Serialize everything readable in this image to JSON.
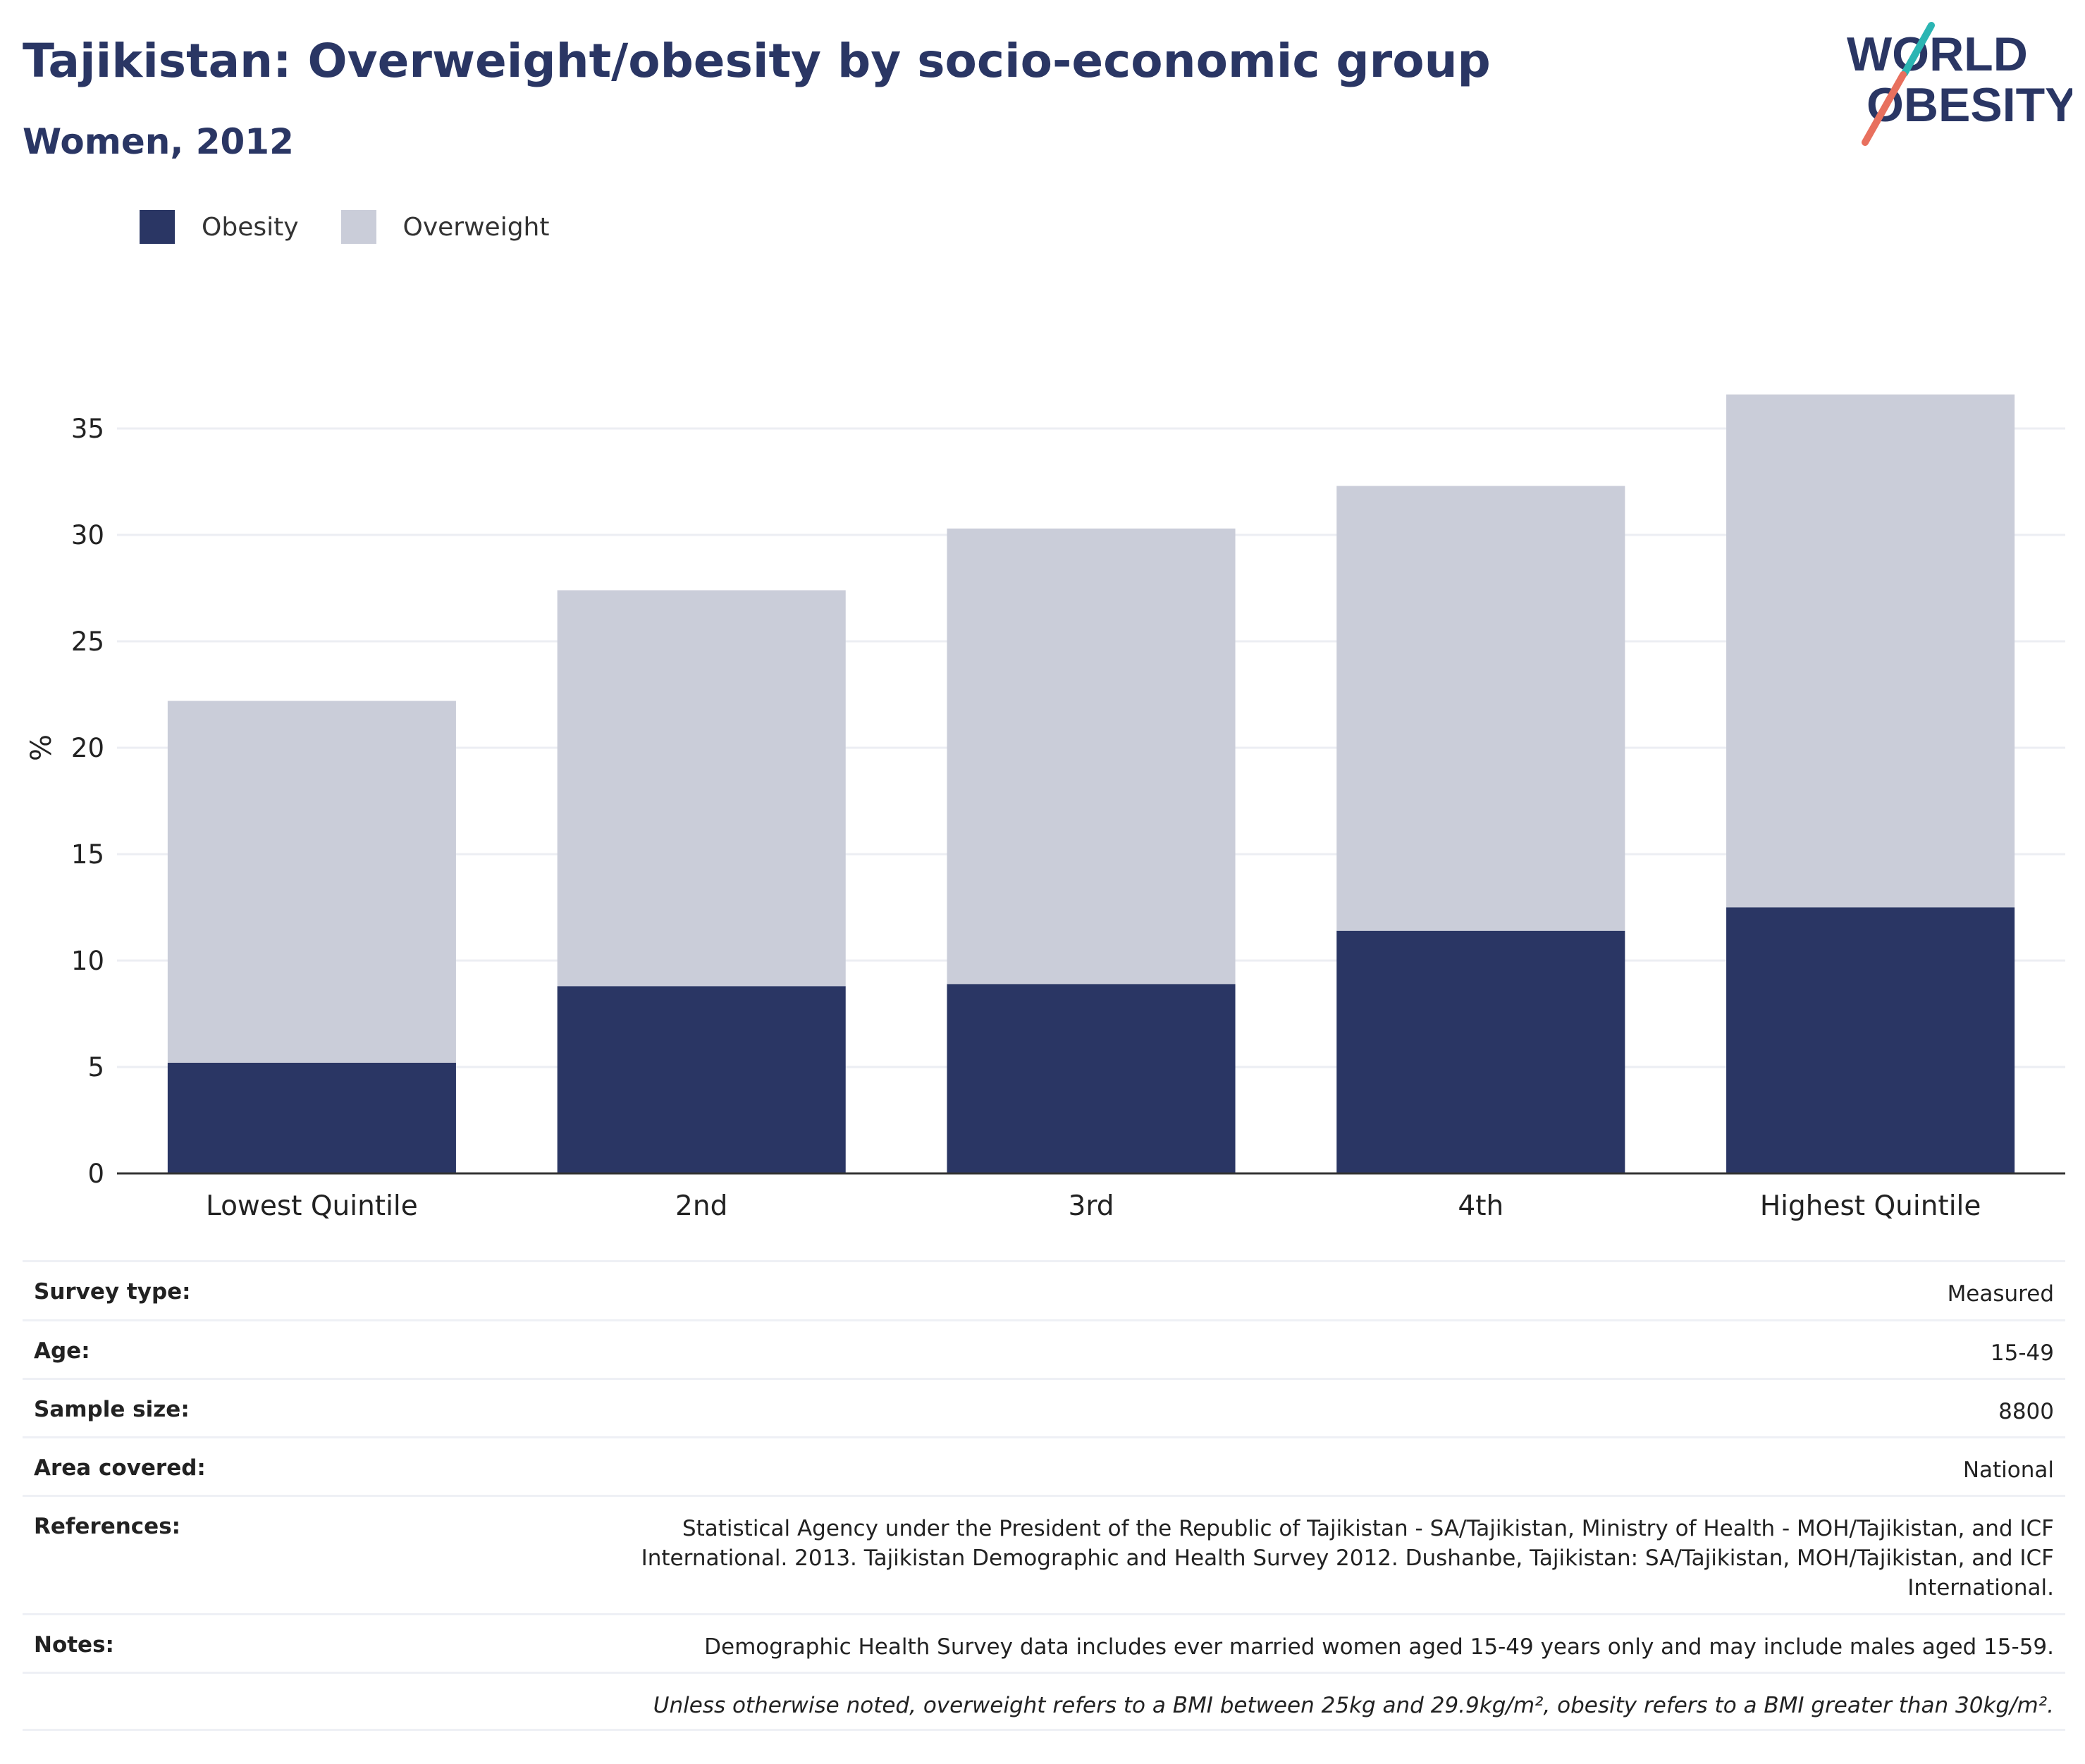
{
  "header": {
    "title": "Tajikistan: Overweight/obesity by socio-economic group",
    "subtitle": "Women, 2012",
    "logo_line1": "WORLD",
    "logo_line2": "OBESITY"
  },
  "colors": {
    "title": "#2a3664",
    "obesity": "#2a3664",
    "overweight": "#cacdd9",
    "grid": "#eceef3",
    "axis": "#333333",
    "logo_teal": "#2bb5b3",
    "logo_coral": "#e8705e"
  },
  "legend": [
    {
      "label": "Obesity",
      "color": "#2a3664"
    },
    {
      "label": "Overweight",
      "color": "#cacdd9"
    }
  ],
  "chart_data": {
    "type": "bar",
    "stacked": true,
    "categories": [
      "Lowest Quintile",
      "2nd",
      "3rd",
      "4th",
      "Highest Quintile"
    ],
    "series": [
      {
        "name": "Obesity",
        "values": [
          5.2,
          8.8,
          8.9,
          11.4,
          12.5
        ]
      },
      {
        "name": "Overweight",
        "values": [
          17.0,
          18.6,
          21.4,
          20.9,
          24.1
        ]
      }
    ],
    "ylabel": "%",
    "xlabel": "",
    "ylim": [
      0,
      37.5
    ],
    "yticks": [
      0,
      5,
      10,
      15,
      20,
      25,
      30,
      35
    ],
    "grid": true,
    "legend_position": "top-left"
  },
  "info": [
    {
      "label": "Survey type:",
      "value": "Measured"
    },
    {
      "label": "Age:",
      "value": "15-49"
    },
    {
      "label": "Sample size:",
      "value": "8800"
    },
    {
      "label": "Area covered:",
      "value": "National"
    },
    {
      "label": "References:",
      "value": "Statistical Agency under the President of the Republic of Tajikistan - SA/Tajikistan, Ministry of Health - MOH/Tajikistan, and ICF International. 2013. Tajikistan Demographic and Health Survey 2012. Dushanbe, Tajikistan: SA/Tajikistan, MOH/Tajikistan, and ICF International."
    },
    {
      "label": "Notes:",
      "value": "Demographic Health Survey data includes ever married women aged 15-49 years only and may include males aged 15-59."
    }
  ],
  "footnote": "Unless otherwise noted, overweight refers to a BMI between 25kg and 29.9kg/m², obesity refers to a BMI greater than 30kg/m²."
}
